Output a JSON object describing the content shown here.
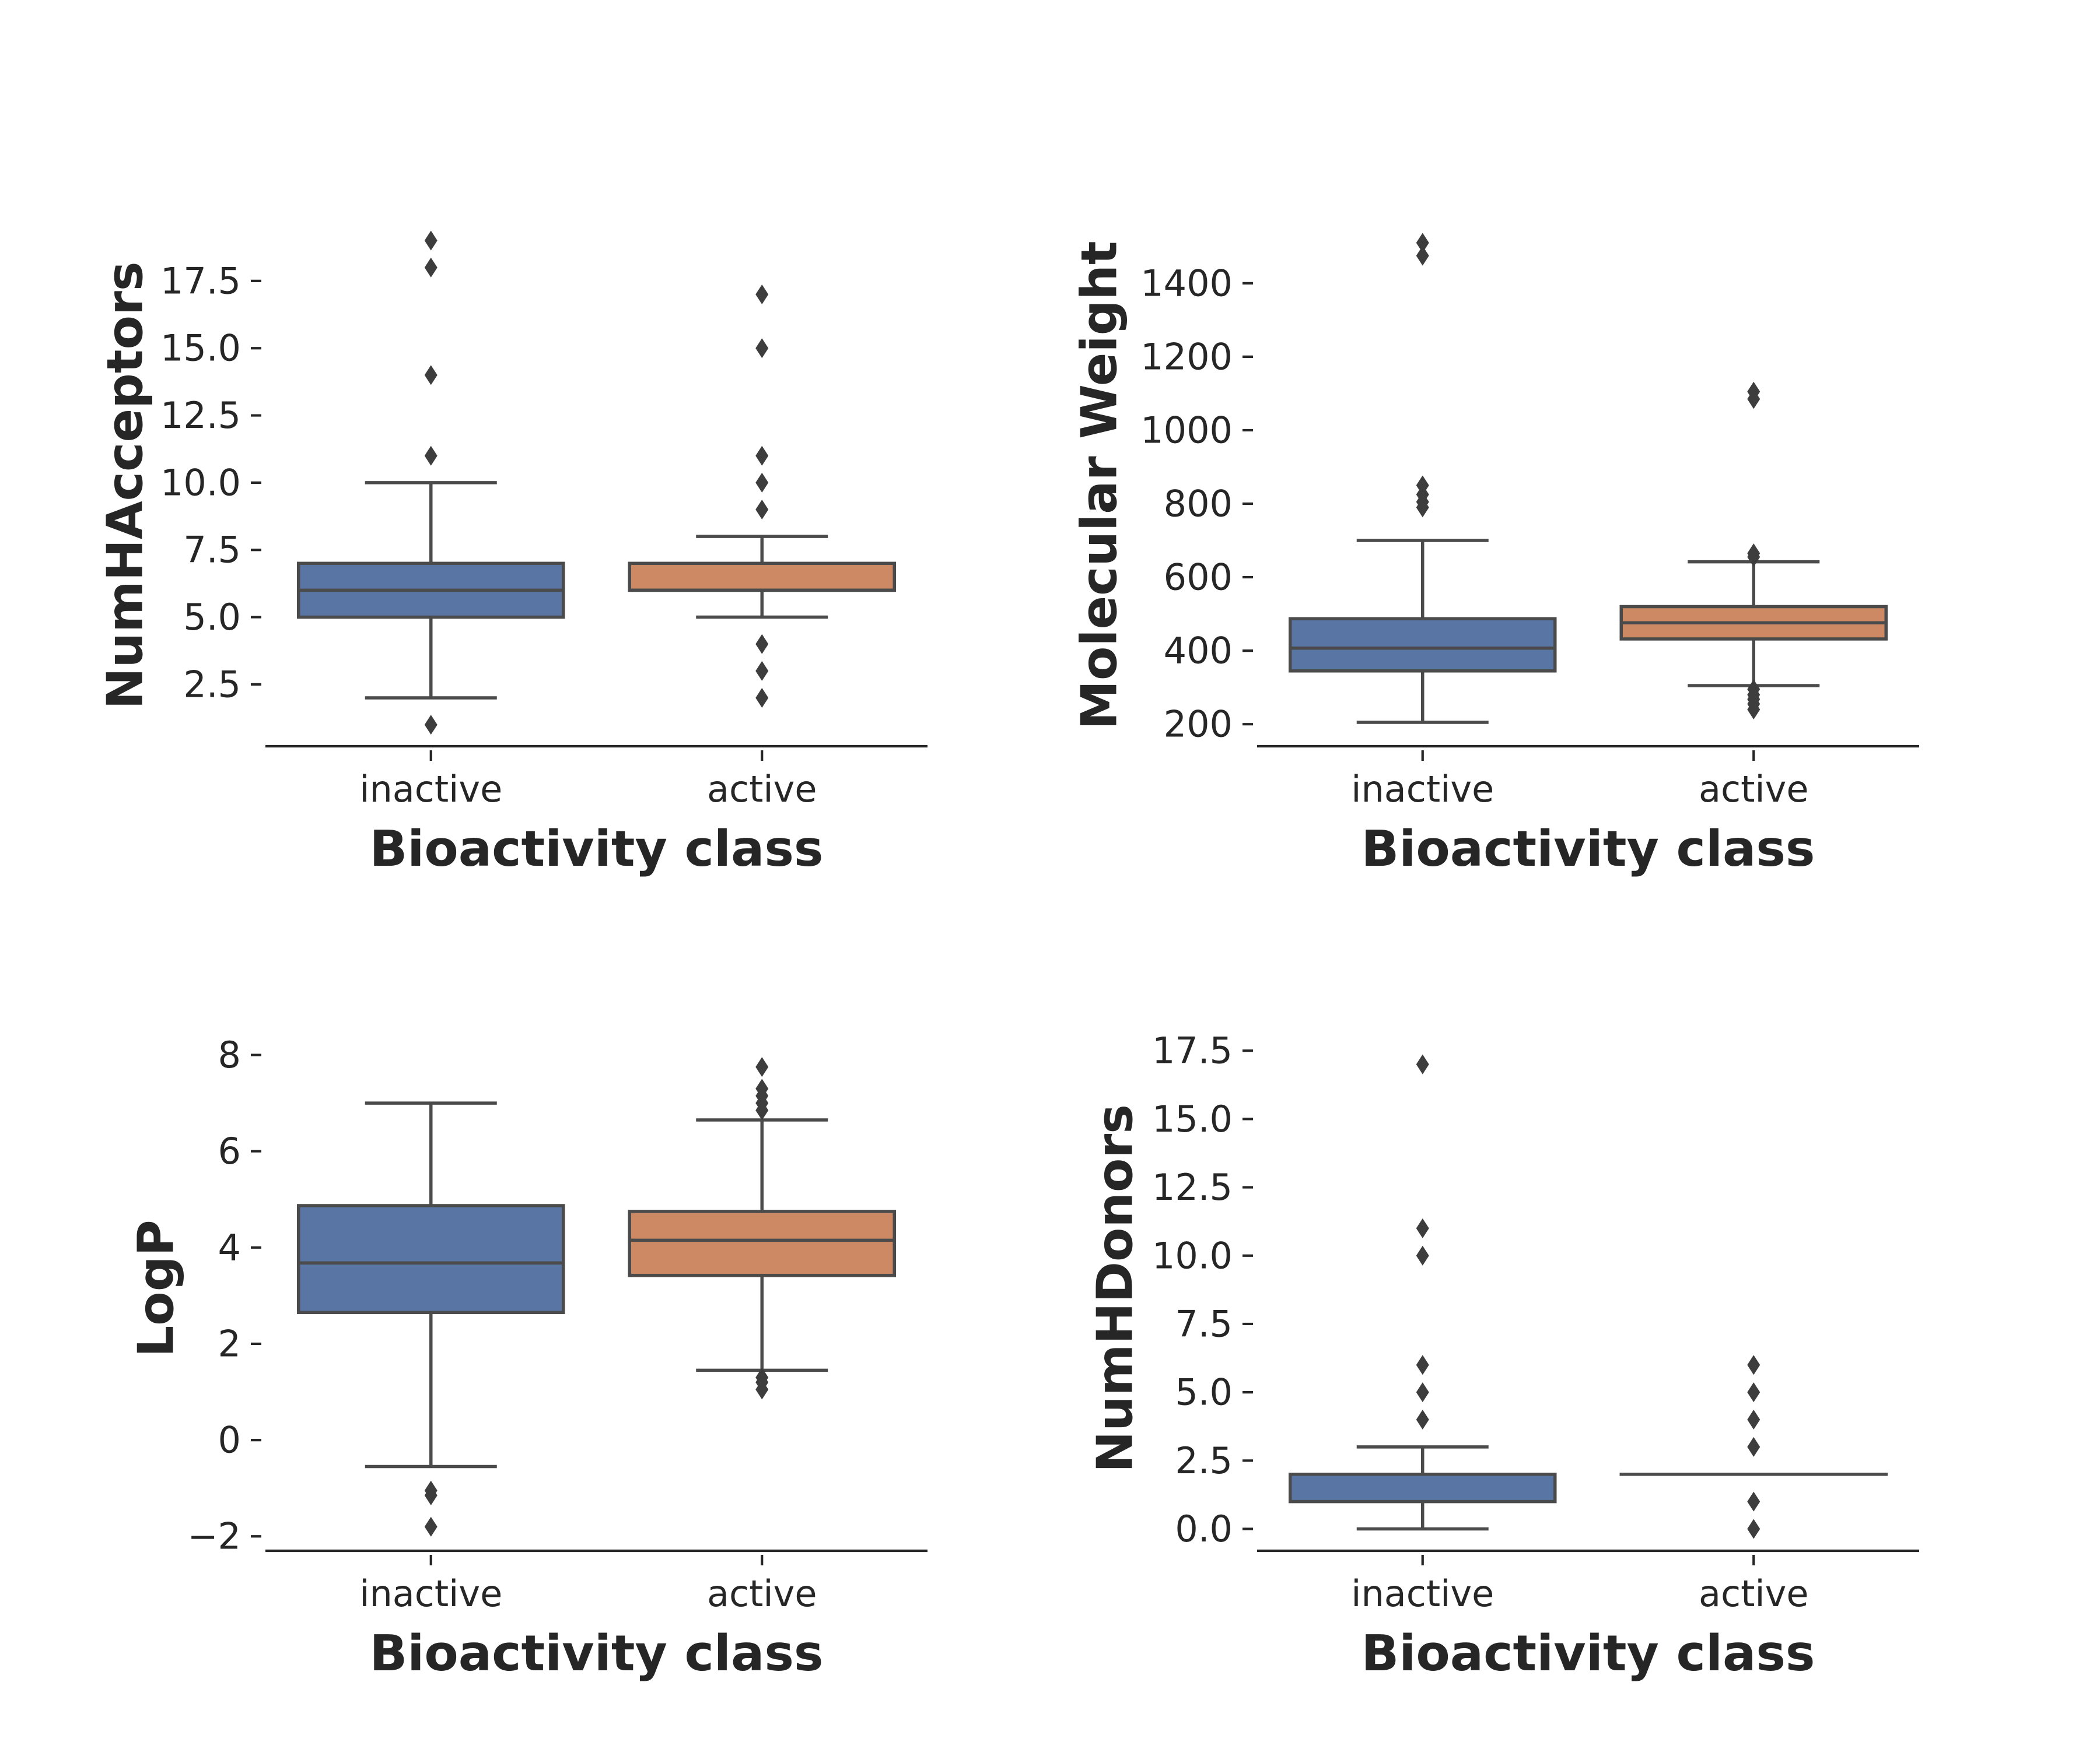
{
  "chart_data": [
    {
      "type": "box",
      "ylabel": "NumHAcceptors",
      "xlabel": "Bioactivity class",
      "categories": [
        "inactive",
        "active"
      ],
      "ylim": [
        0.2,
        19.6
      ],
      "yticks": [
        2.5,
        5.0,
        7.5,
        10.0,
        12.5,
        15.0,
        17.5
      ],
      "ytick_labels": [
        "2.5",
        "5.0",
        "7.5",
        "10.0",
        "12.5",
        "15.0",
        "17.5"
      ],
      "boxes": [
        {
          "category": "inactive",
          "color": "#5875a4",
          "q1": 5,
          "median": 6,
          "q3": 7,
          "whisker_low": 2,
          "whisker_high": 10,
          "outliers": [
            1,
            11,
            14,
            18,
            19
          ]
        },
        {
          "category": "active",
          "color": "#cc8963",
          "q1": 6,
          "median": 6,
          "q3": 7,
          "whisker_low": 5,
          "whisker_high": 8,
          "outliers": [
            2,
            3,
            4,
            9,
            10,
            11,
            15,
            17
          ]
        }
      ]
    },
    {
      "type": "box",
      "ylabel": "Molecular Weight",
      "xlabel": "Bioactivity class",
      "categories": [
        "inactive",
        "active"
      ],
      "ylim": [
        140,
        1560
      ],
      "yticks": [
        200,
        400,
        600,
        800,
        1000,
        1200,
        1400
      ],
      "ytick_labels": [
        "200",
        "400",
        "600",
        "800",
        "1000",
        "1200",
        "1400"
      ],
      "boxes": [
        {
          "category": "inactive",
          "color": "#5875a4",
          "q1": 345,
          "median": 407,
          "q3": 487,
          "whisker_low": 205,
          "whisker_high": 700,
          "outliers": [
            790,
            805,
            825,
            850,
            1475,
            1510
          ]
        },
        {
          "category": "active",
          "color": "#cc8963",
          "q1": 432,
          "median": 476,
          "q3": 520,
          "whisker_low": 305,
          "whisker_high": 642,
          "outliers": [
            240,
            255,
            268,
            280,
            295,
            655,
            665,
            1085,
            1105
          ]
        }
      ]
    },
    {
      "type": "box",
      "ylabel": "LogP",
      "xlabel": "Bioactivity class",
      "categories": [
        "inactive",
        "active"
      ],
      "ylim": [
        -2.3,
        8.6
      ],
      "yticks": [
        -2,
        0,
        2,
        4,
        6,
        8
      ],
      "ytick_labels": [
        "−2",
        "0",
        "2",
        "4",
        "6",
        "8"
      ],
      "boxes": [
        {
          "category": "inactive",
          "color": "#5875a4",
          "q1": 2.65,
          "median": 3.68,
          "q3": 4.87,
          "whisker_low": -0.55,
          "whisker_high": 7.0,
          "outliers": [
            -1.8,
            -1.15,
            -1.05
          ]
        },
        {
          "category": "active",
          "color": "#cc8963",
          "q1": 3.42,
          "median": 4.15,
          "q3": 4.75,
          "whisker_low": 1.45,
          "whisker_high": 6.65,
          "outliers": [
            1.05,
            1.2,
            1.3,
            6.85,
            7.0,
            7.15,
            7.3,
            7.75
          ]
        }
      ]
    },
    {
      "type": "box",
      "ylabel": "NumHDonors",
      "xlabel": "Bioactivity class",
      "categories": [
        "inactive",
        "active"
      ],
      "ylim": [
        -0.8,
        18.4
      ],
      "yticks": [
        0.0,
        2.5,
        5.0,
        7.5,
        10.0,
        12.5,
        15.0,
        17.5
      ],
      "ytick_labels": [
        "0.0",
        "2.5",
        "5.0",
        "7.5",
        "10.0",
        "12.5",
        "15.0",
        "17.5"
      ],
      "boxes": [
        {
          "category": "inactive",
          "color": "#5875a4",
          "q1": 1,
          "median": 2,
          "q3": 2,
          "whisker_low": 0,
          "whisker_high": 3,
          "outliers": [
            4,
            5,
            6,
            10,
            11,
            17
          ]
        },
        {
          "category": "active",
          "color": "#cc8963",
          "q1": 2,
          "median": 2,
          "q3": 2,
          "whisker_low": 2,
          "whisker_high": 2,
          "outliers": [
            0,
            1,
            3,
            4,
            5,
            6
          ]
        }
      ]
    }
  ]
}
